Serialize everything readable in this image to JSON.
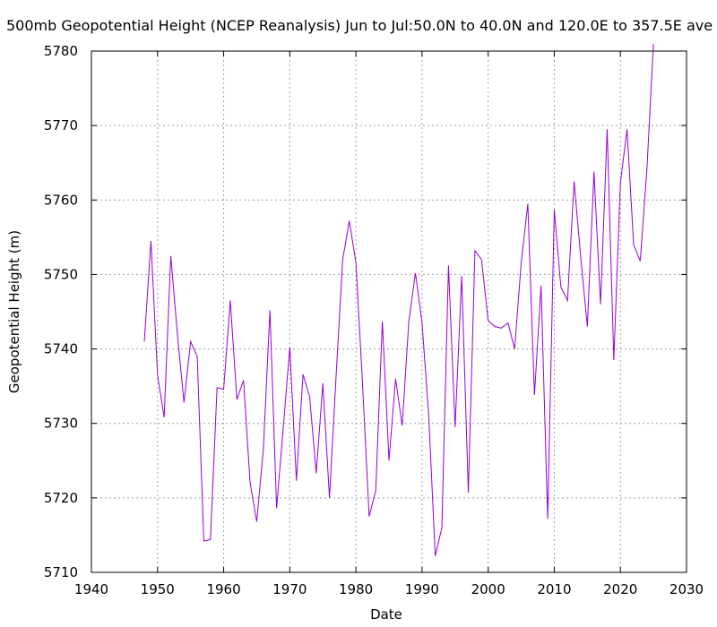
{
  "chart_data": {
    "type": "line",
    "title": "500mb Geopotential Height (NCEP Reanalysis) Jun to Jul:50.0N to 40.0N and 120.0E to 357.5E ave",
    "xlabel": "Date",
    "ylabel": "Geopotential Height (m)",
    "xlim": [
      1940,
      2030
    ],
    "ylim": [
      5710,
      5780
    ],
    "xticks": [
      1940,
      1950,
      1960,
      1970,
      1980,
      1990,
      2000,
      2010,
      2020,
      2030
    ],
    "yticks": [
      5710,
      5720,
      5730,
      5740,
      5750,
      5760,
      5770,
      5780
    ],
    "grid": true,
    "legend": "none",
    "series": [
      {
        "color": "#9400d3",
        "x": [
          1948,
          1949,
          1950,
          1951,
          1952,
          1953,
          1954,
          1955,
          1956,
          1957,
          1958,
          1959,
          1960,
          1961,
          1962,
          1963,
          1964,
          1965,
          1966,
          1967,
          1968,
          1969,
          1970,
          1971,
          1972,
          1973,
          1974,
          1975,
          1976,
          1977,
          1978,
          1979,
          1980,
          1981,
          1982,
          1983,
          1984,
          1985,
          1986,
          1987,
          1988,
          1989,
          1990,
          1991,
          1992,
          1993,
          1994,
          1995,
          1996,
          1997,
          1998,
          1999,
          2000,
          2001,
          2002,
          2003,
          2004,
          2005,
          2006,
          2007,
          2008,
          2009,
          2010,
          2011,
          2012,
          2013,
          2014,
          2015,
          2016,
          2017,
          2018,
          2019,
          2020,
          2021,
          2022,
          2023,
          2024,
          2025
        ],
        "values": [
          5741.0,
          5754.5,
          5736.5,
          5730.8,
          5752.5,
          5742.0,
          5732.8,
          5741.0,
          5739.0,
          5714.2,
          5714.4,
          5734.8,
          5734.6,
          5746.5,
          5733.2,
          5735.8,
          5722.0,
          5716.8,
          5726.5,
          5745.2,
          5718.6,
          5729.3,
          5740.2,
          5722.3,
          5736.6,
          5733.6,
          5723.3,
          5735.4,
          5720.0,
          5736.3,
          5752.0,
          5757.2,
          5751.6,
          5735.3,
          5717.5,
          5721.0,
          5743.7,
          5725.0,
          5736.0,
          5729.7,
          5743.7,
          5750.2,
          5743.5,
          5731.2,
          5712.2,
          5716.0,
          5751.2,
          5729.5,
          5749.8,
          5720.7,
          5753.2,
          5752.0,
          5743.8,
          5743.0,
          5742.8,
          5743.5,
          5740.0,
          5751.6,
          5759.5,
          5733.8,
          5748.5,
          5717.2,
          5758.7,
          5748.3,
          5746.5,
          5762.5,
          5752.3,
          5743.0,
          5763.8,
          5746.0,
          5769.5,
          5738.5,
          5762.3,
          5769.5,
          5754.0,
          5751.8,
          5764.0,
          5781.0
        ]
      }
    ]
  }
}
